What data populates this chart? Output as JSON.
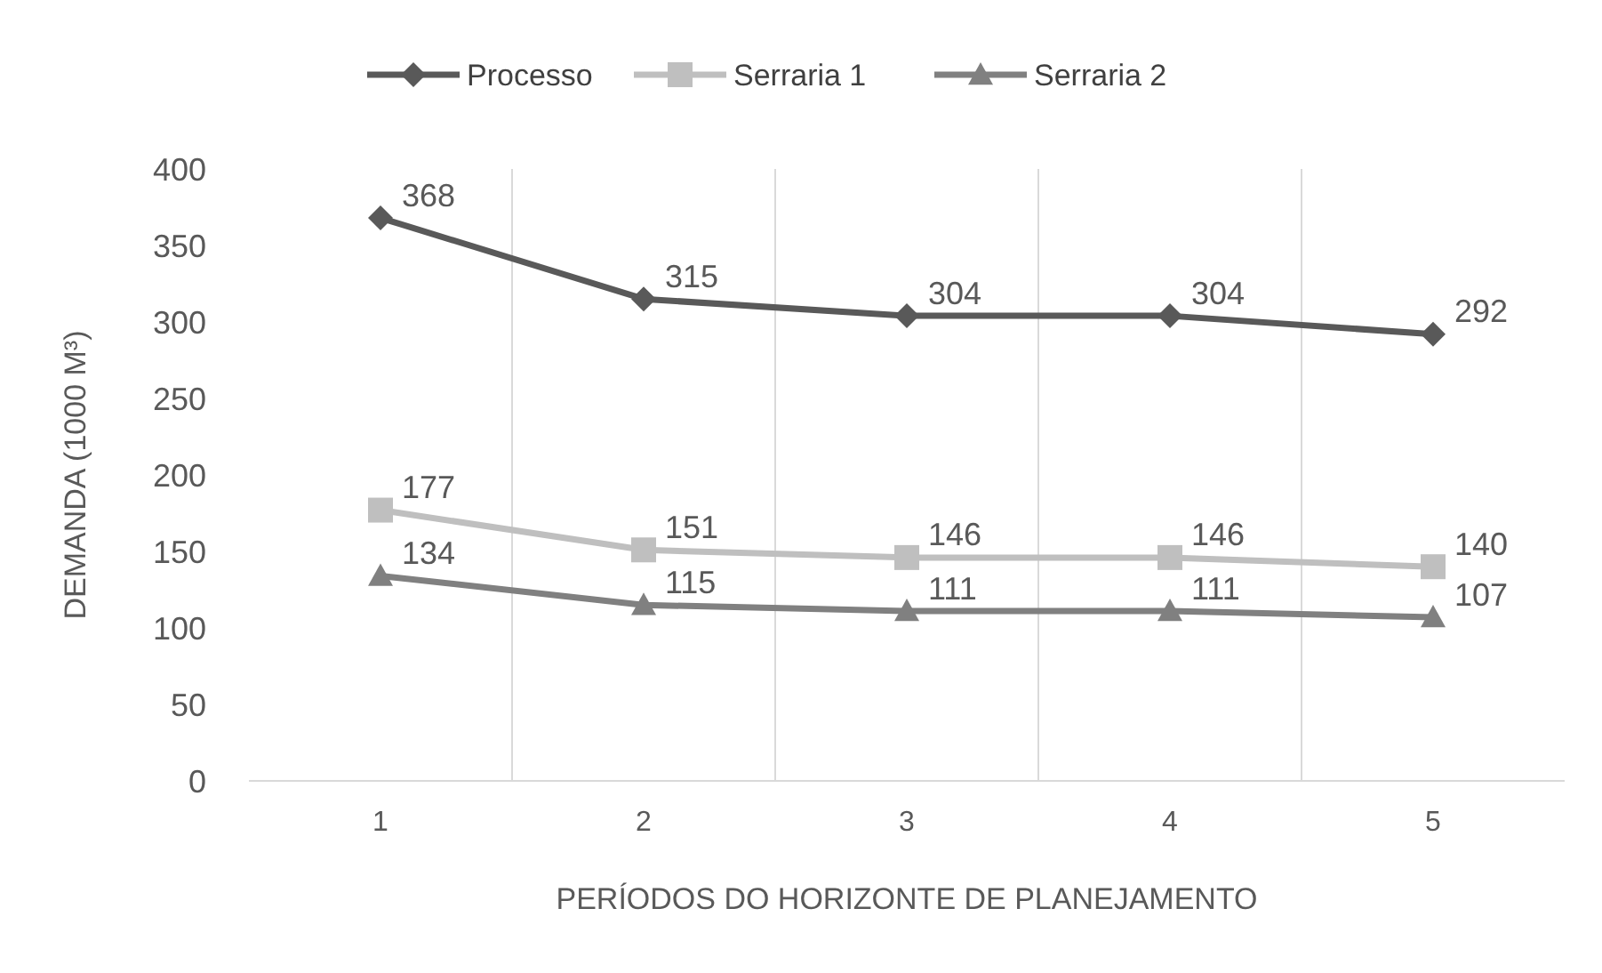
{
  "chart_data": {
    "type": "line",
    "xlabel": "PERÍODOS DO HORIZONTE DE PLANEJAMENTO",
    "ylabel": "DEMANDA (1000 M³)",
    "categories": [
      "1",
      "2",
      "3",
      "4",
      "5"
    ],
    "ylim": [
      0,
      400
    ],
    "yticks": [
      0,
      50,
      100,
      150,
      200,
      250,
      300,
      350,
      400
    ],
    "grid": "x",
    "legend": "top",
    "data_labels": true,
    "series": [
      {
        "name": "Processo",
        "color": "#595959",
        "marker": "diamond",
        "values": [
          368,
          315,
          304,
          304,
          292
        ]
      },
      {
        "name": "Serraria 1",
        "color": "#bfbfbf",
        "marker": "square",
        "values": [
          177,
          151,
          146,
          146,
          140
        ]
      },
      {
        "name": "Serraria 2",
        "color": "#808080",
        "marker": "triangle",
        "values": [
          134,
          115,
          111,
          111,
          107
        ]
      }
    ]
  }
}
